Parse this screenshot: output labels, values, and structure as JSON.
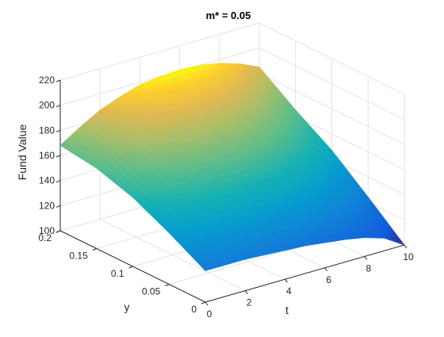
{
  "chart_data": {
    "type": "surface",
    "title": "m* = 0.05",
    "xlabel": "t",
    "ylabel": "y",
    "zlabel": "Fund Value",
    "xlim": [
      0,
      10
    ],
    "ylim": [
      0,
      0.2
    ],
    "zlim": [
      100,
      220
    ],
    "x_ticks": [
      "0",
      "2",
      "4",
      "6",
      "8",
      "10"
    ],
    "y_ticks": [
      "0",
      "0.05",
      "0.1",
      "0.15",
      "0.2"
    ],
    "z_ticks": [
      "100",
      "120",
      "140",
      "160",
      "180",
      "200",
      "220"
    ],
    "grid": true,
    "colormap": "parula",
    "surface_t": [
      0,
      1,
      2,
      3,
      4,
      5,
      6,
      7,
      8,
      9,
      10
    ],
    "surface_y": [
      0,
      0.05,
      0.1,
      0.15,
      0.2
    ],
    "surface_values": [
      [
        125,
        125,
        125,
        124,
        123,
        122,
        120,
        118,
        115,
        110,
        100
      ],
      [
        141,
        144,
        146,
        147,
        147,
        146,
        145,
        142,
        138,
        132,
        124
      ],
      [
        155,
        160,
        164,
        166,
        167,
        167,
        166,
        163,
        159,
        154,
        147
      ],
      [
        164,
        172,
        178,
        182,
        184,
        185,
        184,
        182,
        178,
        172,
        165
      ],
      [
        168,
        178,
        187,
        193,
        198,
        200,
        201,
        200,
        197,
        192,
        185
      ]
    ]
  }
}
